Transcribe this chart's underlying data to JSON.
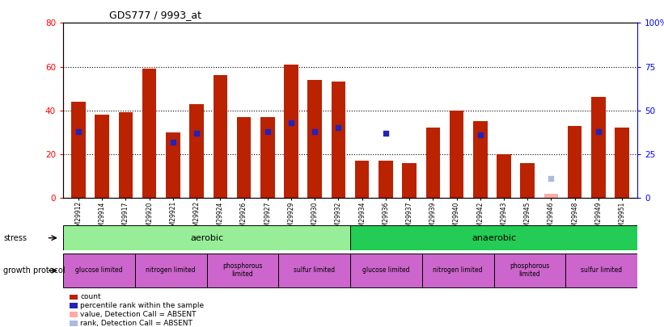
{
  "title": "GDS777 / 9993_at",
  "samples": [
    "GSM29912",
    "GSM29914",
    "GSM29917",
    "GSM29920",
    "GSM29921",
    "GSM29922",
    "GSM29924",
    "GSM29926",
    "GSM29927",
    "GSM29929",
    "GSM29930",
    "GSM29932",
    "GSM29934",
    "GSM29936",
    "GSM29937",
    "GSM29939",
    "GSM29940",
    "GSM29942",
    "GSM29943",
    "GSM29945",
    "GSM29946",
    "GSM29948",
    "GSM29949",
    "GSM29951"
  ],
  "red_bars": [
    44,
    38,
    39,
    59,
    30,
    43,
    56,
    37,
    37,
    61,
    54,
    53,
    17,
    17,
    16,
    32,
    40,
    35,
    20,
    16,
    0,
    33,
    46,
    32
  ],
  "blue_dots_val": [
    38,
    null,
    null,
    null,
    32,
    37,
    null,
    null,
    38,
    43,
    38,
    40,
    null,
    37,
    null,
    null,
    null,
    36,
    null,
    null,
    null,
    null,
    38,
    null
  ],
  "absent_red_bar": 2,
  "absent_red_idx": 20,
  "absent_blue_val": 11,
  "absent_blue_idx": 20,
  "stress_groups": [
    {
      "label": "aerobic",
      "start": 0,
      "end": 12,
      "color": "#98EE98"
    },
    {
      "label": "anaerobic",
      "start": 12,
      "end": 24,
      "color": "#22CC55"
    }
  ],
  "growth_groups": [
    {
      "label": "glucose limited",
      "start": 0,
      "end": 3
    },
    {
      "label": "nitrogen limited",
      "start": 3,
      "end": 6
    },
    {
      "label": "phosphorous\nlimited",
      "start": 6,
      "end": 9
    },
    {
      "label": "sulfur limited",
      "start": 9,
      "end": 12
    },
    {
      "label": "glucose limited",
      "start": 12,
      "end": 15
    },
    {
      "label": "nitrogen limited",
      "start": 15,
      "end": 18
    },
    {
      "label": "phosphorous\nlimited",
      "start": 18,
      "end": 21
    },
    {
      "label": "sulfur limited",
      "start": 21,
      "end": 24
    }
  ],
  "growth_color": "#CC66CC",
  "ylim_left": [
    0,
    80
  ],
  "ylim_right": [
    0,
    100
  ],
  "yticks_left": [
    0,
    20,
    40,
    60,
    80
  ],
  "yticks_right": [
    0,
    25,
    50,
    75,
    100
  ],
  "bar_color": "#BB2200",
  "dot_color": "#2222BB",
  "absent_red_color": "#FFAAAA",
  "absent_blue_color": "#AABBDD",
  "legend_items": [
    {
      "color": "#BB2200",
      "label": "count"
    },
    {
      "color": "#2222BB",
      "label": "percentile rank within the sample"
    },
    {
      "color": "#FFAAAA",
      "label": "value, Detection Call = ABSENT"
    },
    {
      "color": "#AABBDD",
      "label": "rank, Detection Call = ABSENT"
    }
  ]
}
